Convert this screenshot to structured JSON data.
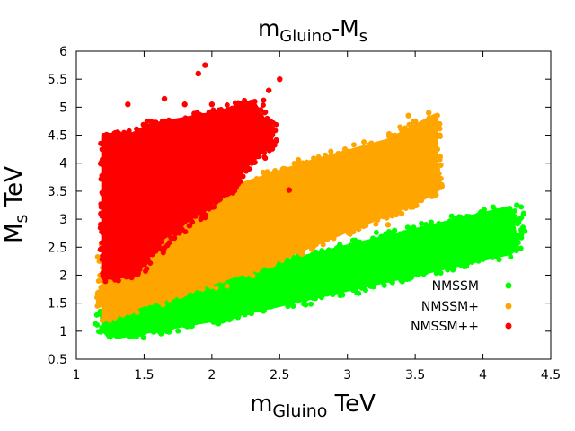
{
  "chart_data": {
    "type": "scatter",
    "title": {
      "main": "m",
      "sub1": "Gluino",
      "mid": "-M",
      "sub2": "s"
    },
    "xlabel": {
      "main": "m",
      "sub": "Gluino",
      "unit": " TeV"
    },
    "ylabel": {
      "main": "M",
      "sub": "s",
      "unit": " TeV"
    },
    "xlim": [
      1,
      4.5
    ],
    "ylim": [
      0.5,
      6
    ],
    "xticks": [
      "1",
      "1.5",
      "2",
      "2.5",
      "3",
      "3.5",
      "4",
      "4.5"
    ],
    "yticks": [
      "0.5",
      "1",
      "1.5",
      "2",
      "2.5",
      "3",
      "3.5",
      "4",
      "4.5",
      "5",
      "5.5",
      "6"
    ],
    "xtick_values": [
      1,
      1.5,
      2,
      2.5,
      3,
      3.5,
      4,
      4.5
    ],
    "ytick_values": [
      0.5,
      1,
      1.5,
      2,
      2.5,
      3,
      3.5,
      4,
      4.5,
      5,
      5.5,
      6
    ],
    "legend_position": "bottom-right",
    "series": [
      {
        "name": "NMSSM",
        "color": "#00ff00",
        "region": [
          [
            1.2,
            1.05
          ],
          [
            1.2,
            1.45
          ],
          [
            3.5,
            2.8
          ],
          [
            4.2,
            3.2
          ],
          [
            4.25,
            2.5
          ],
          [
            4.2,
            2.4
          ],
          [
            2.0,
            1.2
          ],
          [
            1.3,
            0.9
          ]
        ],
        "points": [
          [
            1.25,
            0.9
          ],
          [
            1.3,
            0.92
          ],
          [
            1.2,
            1.05
          ],
          [
            4.3,
            3.1
          ],
          [
            4.25,
            3.25
          ],
          [
            4.1,
            3.0
          ]
        ]
      },
      {
        "name": "NMSSM+",
        "color": "#ffa500",
        "region": [
          [
            1.2,
            1.2
          ],
          [
            1.2,
            2.5
          ],
          [
            2.2,
            3.6
          ],
          [
            2.7,
            4.0
          ],
          [
            3.3,
            4.4
          ],
          [
            3.65,
            4.85
          ],
          [
            3.65,
            3.5
          ],
          [
            3.5,
            3.3
          ],
          [
            3.0,
            2.8
          ],
          [
            2.3,
            2.1
          ],
          [
            1.4,
            1.4
          ]
        ],
        "points": [
          [
            3.6,
            4.9
          ],
          [
            3.5,
            4.75
          ],
          [
            3.45,
            4.85
          ],
          [
            2.6,
            3.4
          ],
          [
            3.4,
            3.1
          ],
          [
            3.3,
            2.9
          ],
          [
            1.9,
            3.6
          ]
        ]
      },
      {
        "name": "NMSSM++",
        "color": "#ff0000",
        "region": [
          [
            1.2,
            1.95
          ],
          [
            1.2,
            4.5
          ],
          [
            1.4,
            4.5
          ],
          [
            1.6,
            4.7
          ],
          [
            2.05,
            4.9
          ],
          [
            2.3,
            5.1
          ],
          [
            2.45,
            4.5
          ],
          [
            2.2,
            3.8
          ],
          [
            2.0,
            3.3
          ],
          [
            1.6,
            2.6
          ],
          [
            1.4,
            2.0
          ]
        ],
        "points": [
          [
            1.95,
            5.75
          ],
          [
            1.9,
            5.6
          ],
          [
            2.5,
            5.5
          ],
          [
            2.42,
            5.3
          ],
          [
            1.65,
            5.15
          ],
          [
            1.38,
            5.05
          ],
          [
            2.57,
            3.52
          ],
          [
            2.15,
            3.55
          ],
          [
            2.0,
            5.05
          ],
          [
            1.8,
            5.05
          ]
        ]
      }
    ]
  }
}
